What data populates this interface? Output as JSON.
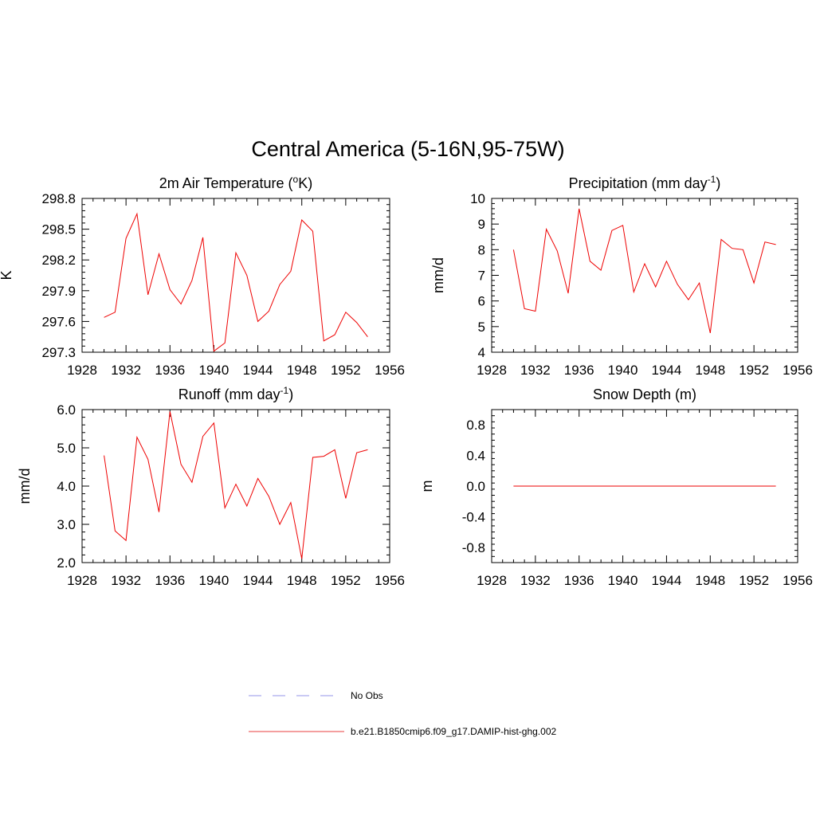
{
  "title": "Central America (5-16N,95-75W)",
  "chart_data": [
    {
      "type": "line",
      "title": "2m Air Temperature (°K)",
      "title_main": "2m Air Temperature (",
      "title_sup": "o",
      "title_tail": "K)",
      "ylabel": "K",
      "xlim": [
        1928,
        1956
      ],
      "ylim": [
        297.3,
        298.8
      ],
      "xticks": [
        "1928",
        "1932",
        "1936",
        "1940",
        "1944",
        "1948",
        "1952",
        "1956"
      ],
      "yticks": [
        "297.3",
        "297.6",
        "297.9",
        "298.2",
        "298.5",
        "298.8"
      ],
      "series": [
        {
          "name": "b.e21.B1850cmip6.f09_g17.DAMIP-hist-ghg.002",
          "x": [
            1930,
            1931,
            1932,
            1933,
            1934,
            1935,
            1936,
            1937,
            1938,
            1939,
            1940,
            1941,
            1942,
            1943,
            1944,
            1945,
            1946,
            1947,
            1948,
            1949,
            1950,
            1951,
            1952,
            1953,
            1954
          ],
          "values": [
            297.64,
            297.69,
            298.41,
            298.65,
            297.86,
            298.26,
            297.91,
            297.77,
            298.0,
            298.42,
            297.31,
            297.39,
            298.27,
            298.05,
            297.6,
            297.7,
            297.96,
            298.09,
            298.59,
            298.48,
            297.41,
            297.47,
            297.69,
            297.59,
            297.45
          ]
        }
      ]
    },
    {
      "type": "line",
      "title": "Precipitation (mm day-1)",
      "title_main": "Precipitation (mm day",
      "title_sup": "-1",
      "title_tail": ")",
      "ylabel": "mm/d",
      "xlim": [
        1928,
        1956
      ],
      "ylim": [
        4,
        10
      ],
      "xticks": [
        "1928",
        "1932",
        "1936",
        "1940",
        "1944",
        "1948",
        "1952",
        "1956"
      ],
      "yticks": [
        "4",
        "5",
        "6",
        "7",
        "8",
        "9",
        "10"
      ],
      "series": [
        {
          "name": "b.e21.B1850cmip6.f09_g17.DAMIP-hist-ghg.002",
          "x": [
            1930,
            1931,
            1932,
            1933,
            1934,
            1935,
            1936,
            1937,
            1938,
            1939,
            1940,
            1941,
            1942,
            1943,
            1944,
            1945,
            1946,
            1947,
            1948,
            1949,
            1950,
            1951,
            1952,
            1953,
            1954
          ],
          "values": [
            8.0,
            5.7,
            5.6,
            8.8,
            7.95,
            6.3,
            9.6,
            7.55,
            7.2,
            8.75,
            8.95,
            6.35,
            7.45,
            6.55,
            7.55,
            6.65,
            6.05,
            6.7,
            4.75,
            8.4,
            8.05,
            8.0,
            6.7,
            8.3,
            8.2
          ]
        }
      ]
    },
    {
      "type": "line",
      "title": "Runoff (mm day-1)",
      "title_main": "Runoff (mm day",
      "title_sup": "-1",
      "title_tail": ")",
      "ylabel": "mm/d",
      "xlim": [
        1928,
        1956
      ],
      "ylim": [
        2.0,
        6.0
      ],
      "xticks": [
        "1928",
        "1932",
        "1936",
        "1940",
        "1944",
        "1948",
        "1952",
        "1956"
      ],
      "yticks": [
        "2.0",
        "3.0",
        "4.0",
        "5.0",
        "6.0"
      ],
      "series": [
        {
          "name": "b.e21.B1850cmip6.f09_g17.DAMIP-hist-ghg.002",
          "x": [
            1930,
            1931,
            1932,
            1933,
            1934,
            1935,
            1936,
            1937,
            1938,
            1939,
            1940,
            1941,
            1942,
            1943,
            1944,
            1945,
            1946,
            1947,
            1948,
            1949,
            1950,
            1951,
            1952,
            1953,
            1954
          ],
          "values": [
            4.8,
            2.83,
            2.58,
            5.28,
            4.7,
            3.32,
            5.95,
            4.57,
            4.1,
            5.3,
            5.65,
            3.43,
            4.05,
            3.48,
            4.2,
            3.73,
            3.0,
            3.57,
            2.1,
            4.75,
            4.78,
            4.95,
            3.68,
            4.87,
            4.95
          ]
        }
      ]
    },
    {
      "type": "line",
      "title": "Snow Depth (m)",
      "title_main": "Snow Depth (m)",
      "title_sup": "",
      "title_tail": "",
      "ylabel": "m",
      "xlim": [
        1928,
        1956
      ],
      "ylim": [
        -1.0,
        1.0
      ],
      "xticks": [
        "1928",
        "1932",
        "1936",
        "1940",
        "1944",
        "1948",
        "1952",
        "1956"
      ],
      "yticks": [
        "-0.8",
        "-0.4",
        "0.0",
        "0.4",
        "0.8"
      ],
      "series": [
        {
          "name": "b.e21.B1850cmip6.f09_g17.DAMIP-hist-ghg.002",
          "x": [
            1930,
            1954
          ],
          "values": [
            0.0,
            0.0
          ]
        }
      ]
    }
  ],
  "legend": [
    {
      "label": "No Obs",
      "style": "dashed",
      "color": "#aaaaee"
    },
    {
      "label": "b.e21.B1850cmip6.f09_g17.DAMIP-hist-ghg.002",
      "style": "solid",
      "color": "#ee3333"
    }
  ],
  "colors": {
    "series": "#ee0000",
    "axis": "#000000"
  }
}
